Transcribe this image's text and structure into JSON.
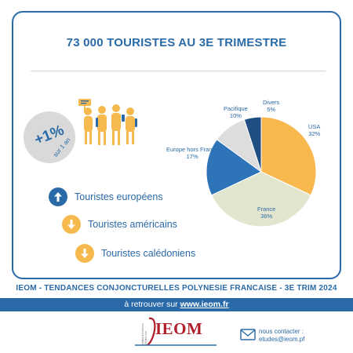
{
  "headline": "73 000 TOURISTES AU 3E TRIMESTRE",
  "growth": {
    "value": "+1%",
    "period": "sur 1 an"
  },
  "trends": [
    {
      "label": "Touristes européens",
      "direction": "up",
      "color": "#2a6aa8"
    },
    {
      "label": "Touristes américains",
      "direction": "down",
      "color": "#f6b94d"
    },
    {
      "label": "Touristes calédoniens",
      "direction": "down",
      "color": "#f6b94d"
    }
  ],
  "chart_data": {
    "type": "pie",
    "slices": [
      {
        "name": "USA",
        "label": "USA",
        "value": 32,
        "value_label": "32%",
        "color": "#f8b84e"
      },
      {
        "name": "France",
        "label": "France",
        "value": 36,
        "value_label": "36%",
        "color": "#e3e6cf"
      },
      {
        "name": "Europe hors France",
        "label": "Europe hors France",
        "value": 17,
        "value_label": "17%",
        "color": "#2e74b8"
      },
      {
        "name": "Pacifique",
        "label": "Pacifique",
        "value": 10,
        "value_label": "10%",
        "color": "#dddddd"
      },
      {
        "name": "Divers",
        "label": "Divers",
        "value": 5,
        "value_label": "5%",
        "color": "#1f4e82"
      }
    ]
  },
  "footer": {
    "title": "IEOM - TENDANCES CONJONCTURELLES POLYNESIE FRANCAISE - 3E TRIM 2024",
    "link_prefix": "à retrouver sur ",
    "link_text": "www.ieom.fr"
  },
  "logo": {
    "text": "IEOM",
    "caption": "Institut d'émission d'Outre-mer"
  },
  "contact": {
    "label": "nous contacter :",
    "email": "etudes@ieom.pf"
  },
  "colors": {
    "primary": "#2a6aa8",
    "accent": "#f6b94d",
    "logo_red": "#b01e2a"
  }
}
